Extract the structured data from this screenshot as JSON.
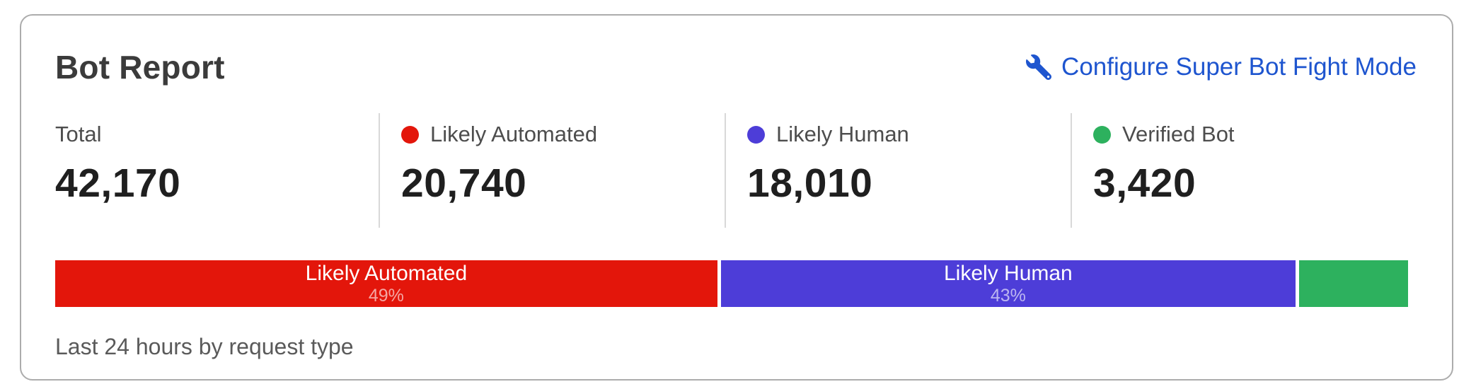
{
  "card": {
    "title": "Bot Report",
    "caption": "Last 24 hours by request type"
  },
  "action": {
    "label": "Configure Super Bot Fight Mode",
    "icon": "wrench"
  },
  "colors": {
    "link_blue": "#1e55cf",
    "likely_automated_red": "#e3160b",
    "likely_human_purple": "#4d3dd8",
    "verified_bot_green": "#2db15e",
    "card_border": "#acacac",
    "divider": "#d9d9d9"
  },
  "stats": [
    {
      "label": "Total",
      "value": "42,170",
      "color": ""
    },
    {
      "label": "Likely Automated",
      "value": "20,740",
      "color": "#e3160b"
    },
    {
      "label": "Likely Human",
      "value": "18,010",
      "color": "#4d3dd8"
    },
    {
      "label": "Verified Bot",
      "value": "3,420",
      "color": "#2db15e"
    }
  ],
  "chart_data": {
    "type": "bar",
    "variant": "stacked-horizontal",
    "title": "Bot Report",
    "caption": "Last 24 hours by request type",
    "categories": [
      "Likely Automated",
      "Likely Human",
      "Verified Bot"
    ],
    "values": [
      20740,
      18010,
      3420
    ],
    "total": 42170,
    "segments": [
      {
        "name": "Likely Automated",
        "bar_label": "Likely Automated",
        "bar_percent": "49%",
        "percent": 49.2,
        "value": 20740,
        "color": "#e3160b"
      },
      {
        "name": "Likely Human",
        "bar_label": "Likely Human",
        "bar_percent": "43%",
        "percent": 42.7,
        "value": 18010,
        "color": "#4d3dd8"
      },
      {
        "name": "Verified Bot",
        "bar_label": "",
        "bar_percent": "",
        "percent": 8.1,
        "value": 3420,
        "color": "#2db15e"
      }
    ]
  }
}
